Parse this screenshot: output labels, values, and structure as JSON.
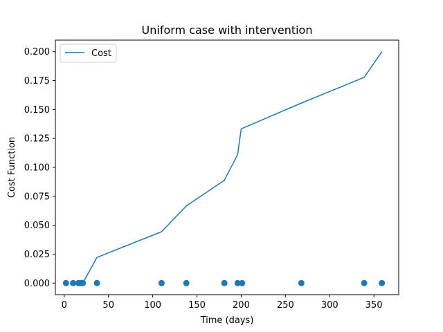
{
  "chart_data": {
    "type": "line",
    "title": "Uniform case with intervention",
    "xlabel": "Time (days)",
    "ylabel": "Cost Function",
    "xlim": [
      -10,
      378
    ],
    "ylim": [
      -0.01,
      0.21
    ],
    "xticks": [
      0,
      50,
      100,
      150,
      200,
      250,
      300,
      350
    ],
    "yticks": [
      0.0,
      0.025,
      0.05,
      0.075,
      0.1,
      0.125,
      0.15,
      0.175,
      0.2
    ],
    "ytick_labels": [
      "0.000",
      "0.025",
      "0.050",
      "0.075",
      "0.100",
      "0.125",
      "0.150",
      "0.175",
      "0.200"
    ],
    "grid": false,
    "legend_position": "top-left",
    "series": [
      {
        "name": "Cost",
        "color": "#1f77b4",
        "x": [
          21,
          37,
          110,
          138,
          181,
          196,
          200,
          268,
          339,
          359
        ],
        "y": [
          0.0,
          0.0222,
          0.0444,
          0.0667,
          0.0889,
          0.1111,
          0.1333,
          0.1556,
          0.1778,
          0.2
        ]
      }
    ],
    "markers": {
      "color": "#1f77b4",
      "x": [
        2,
        10,
        16,
        19,
        21,
        37,
        110,
        138,
        181,
        196,
        201,
        268,
        339,
        359
      ],
      "y": [
        0,
        0,
        0,
        0,
        0,
        0,
        0,
        0,
        0,
        0,
        0,
        0,
        0,
        0
      ]
    }
  }
}
